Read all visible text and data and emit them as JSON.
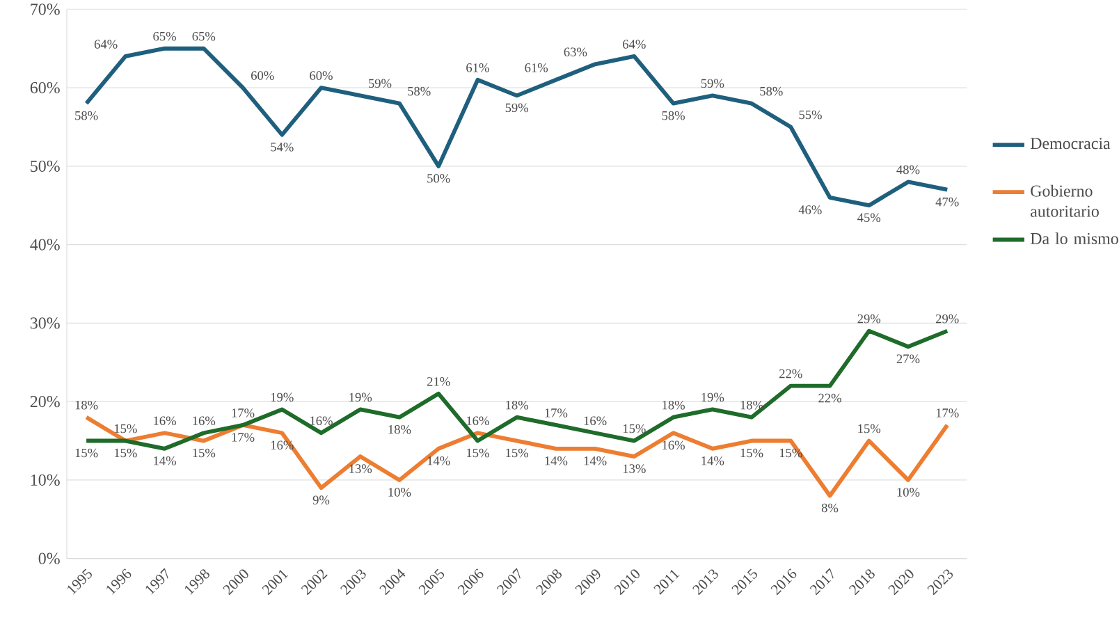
{
  "chart_data": {
    "type": "line",
    "categories": [
      "1995",
      "1996",
      "1997",
      "1998",
      "2000",
      "2001",
      "2002",
      "2003",
      "2004",
      "2005",
      "2006",
      "2007",
      "2008",
      "2009",
      "2010",
      "2011",
      "2013",
      "2015",
      "2016",
      "2017",
      "2018",
      "2020",
      "2023"
    ],
    "series": [
      {
        "name": "Democracia",
        "color": "#1f5f7e",
        "values": [
          58,
          64,
          65,
          65,
          60,
          54,
          60,
          59,
          58,
          50,
          61,
          59,
          61,
          63,
          64,
          58,
          59,
          58,
          55,
          46,
          45,
          48,
          47
        ],
        "value_labels": [
          "58%",
          "64%",
          "65%",
          "65%",
          "60%",
          "54%",
          "60%",
          "59%",
          "58%",
          "50%",
          "61%",
          "59%",
          "61%",
          "63%",
          "64%",
          "58%",
          "59%",
          "58%",
          "55%",
          "46%",
          "45%",
          "48%",
          "47%"
        ]
      },
      {
        "name": "Gobierno autoritario",
        "color": "#ed7d31",
        "values": [
          18,
          15,
          16,
          15,
          17,
          16,
          9,
          13,
          10,
          14,
          16,
          15,
          14,
          14,
          13,
          16,
          14,
          15,
          15,
          8,
          15,
          10,
          17
        ],
        "value_labels": [
          "18%",
          "15%",
          "16%",
          "15%",
          "17%",
          "16%",
          "9%",
          "13%",
          "10%",
          "14%",
          "16%",
          "15%",
          "14%",
          "14%",
          "13%",
          "16%",
          "14%",
          "15%",
          "15%",
          "8%",
          "15%",
          "10%",
          "17%"
        ]
      },
      {
        "name": "Da lo mismo",
        "color": "#1e6b2a",
        "values": [
          15,
          15,
          14,
          16,
          17,
          19,
          16,
          19,
          18,
          21,
          15,
          18,
          17,
          16,
          15,
          18,
          19,
          18,
          22,
          22,
          29,
          27,
          29
        ],
        "value_labels": [
          "15%",
          "15%",
          "14%",
          "16%",
          "17%",
          "19%",
          "16%",
          "19%",
          "18%",
          "21%",
          "15%",
          "18%",
          "17%",
          "16%",
          "15%",
          "18%",
          "19%",
          "18%",
          "22%",
          "22%",
          "29%",
          "27%",
          "29%"
        ]
      }
    ],
    "ylim": [
      0,
      70
    ],
    "yticks": [
      {
        "value": 0,
        "label": "0%"
      },
      {
        "value": 10,
        "label": "10%"
      },
      {
        "value": 20,
        "label": "20%"
      },
      {
        "value": 30,
        "label": "30%"
      },
      {
        "value": 40,
        "label": "40%"
      },
      {
        "value": 50,
        "label": "50%"
      },
      {
        "value": 60,
        "label": "60%"
      },
      {
        "value": 70,
        "label": "70%"
      }
    ],
    "grid": "y",
    "legend": "right",
    "marker": "none",
    "line_style": "solid"
  }
}
